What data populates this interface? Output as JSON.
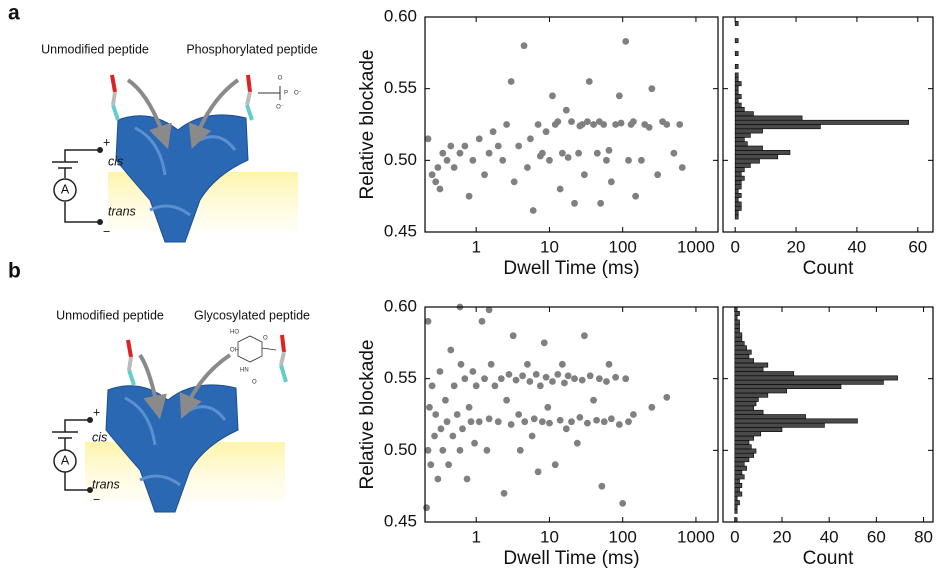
{
  "panels": [
    {
      "label": "a",
      "left_peptide": "Unmodified peptide",
      "right_peptide": "Phosphorylated peptide",
      "cis": "cis",
      "trans": "trans",
      "meter": "A",
      "plus": "+",
      "minus": "−",
      "chem": [
        "O",
        "P",
        "O⁻",
        "O⁻"
      ]
    },
    {
      "label": "b",
      "left_peptide": "Unmodified peptide",
      "right_peptide": "Glycosylated peptide",
      "cis": "cis",
      "trans": "trans",
      "meter": "A",
      "plus": "+",
      "minus": "−",
      "chem": [
        "HO",
        "OH",
        "HN",
        "O",
        "O"
      ]
    }
  ],
  "chart_data": [
    {
      "type": "scatter",
      "xlabel": "Dwell Time (ms)",
      "ylabel": "Relative blockade",
      "color": "#808080",
      "xscale": "log",
      "xlim": [
        0.2,
        2000
      ],
      "xticks": [
        1,
        10,
        100,
        1000
      ],
      "ylim": [
        0.45,
        0.6
      ],
      "yticks": [
        0.45,
        {
          "value": 0.5,
          "label": "0.50"
        },
        0.55,
        {
          "value": 0.6,
          "label": "0.60"
        }
      ],
      "x": [
        0.22,
        0.25,
        0.28,
        0.3,
        0.32,
        0.35,
        0.4,
        0.45,
        0.5,
        0.6,
        0.7,
        0.8,
        0.9,
        1.1,
        1.3,
        1.5,
        1.7,
        2,
        2.3,
        2.6,
        3,
        3.3,
        3.8,
        4.5,
        5,
        5.5,
        6,
        7,
        8,
        9,
        10,
        11,
        12,
        14,
        15,
        17,
        20,
        22,
        25,
        28,
        30,
        35,
        40,
        45,
        50,
        55,
        60,
        70,
        80,
        90,
        110,
        120,
        130,
        150,
        180,
        200,
        250,
        300,
        400,
        500,
        600,
        650,
        18,
        33,
        65,
        95,
        140,
        230,
        350,
        7.5,
        13,
        26,
        48
      ],
      "values": [
        0.515,
        0.49,
        0.485,
        0.495,
        0.48,
        0.505,
        0.5,
        0.51,
        0.495,
        0.505,
        0.51,
        0.475,
        0.5,
        0.515,
        0.49,
        0.505,
        0.52,
        0.51,
        0.5,
        0.525,
        0.555,
        0.485,
        0.51,
        0.58,
        0.495,
        0.515,
        0.465,
        0.525,
        0.505,
        0.52,
        0.5,
        0.545,
        0.525,
        0.48,
        0.505,
        0.535,
        0.527,
        0.47,
        0.505,
        0.525,
        0.49,
        0.555,
        0.525,
        0.505,
        0.47,
        0.525,
        0.5,
        0.485,
        0.525,
        0.545,
        0.583,
        0.5,
        0.525,
        0.475,
        0.5,
        0.525,
        0.55,
        0.49,
        0.525,
        0.505,
        0.525,
        0.495,
        0.502,
        0.527,
        0.507,
        0.526,
        0.527,
        0.523,
        0.527,
        0.503,
        0.527,
        0.524,
        0.527
      ]
    },
    {
      "type": "histogram",
      "orientation": "horizontal",
      "xlabel": "Count",
      "color": "#4a4a4a",
      "xlim": [
        -4,
        65
      ],
      "xticks": [
        0,
        20,
        40,
        60
      ],
      "ylim": [
        0.45,
        0.6
      ],
      "yticks": [
        0.45,
        0.5,
        0.55,
        0.6
      ],
      "bins": [
        0.45,
        0.453,
        0.456,
        0.459,
        0.462,
        0.465,
        0.468,
        0.471,
        0.474,
        0.477,
        0.48,
        0.483,
        0.486,
        0.489,
        0.492,
        0.495,
        0.498,
        0.501,
        0.504,
        0.507,
        0.51,
        0.513,
        0.516,
        0.519,
        0.522,
        0.525,
        0.528,
        0.531,
        0.534,
        0.537,
        0.54,
        0.543,
        0.546,
        0.549,
        0.552,
        0.555,
        0.558,
        0.561,
        0.564,
        0.567,
        0.57,
        0.573,
        0.576,
        0.579,
        0.582,
        0.585,
        0.588,
        0.591,
        0.594,
        0.597,
        0.6
      ],
      "values": [
        0,
        0,
        0,
        1,
        1,
        2,
        2,
        1,
        2,
        1,
        2,
        2,
        3,
        2,
        3,
        5,
        8,
        14,
        18,
        9,
        4,
        3,
        5,
        9,
        28,
        57,
        22,
        6,
        3,
        2,
        1,
        2,
        1,
        1,
        2,
        1,
        1,
        0,
        1,
        0,
        0,
        1,
        0,
        0,
        1,
        0,
        0,
        0,
        1,
        0
      ]
    },
    {
      "type": "scatter",
      "xlabel": "Dwell Time (ms)",
      "ylabel": "Relative blockade",
      "color": "#808080",
      "xscale": "log",
      "xlim": [
        0.2,
        2000
      ],
      "xticks": [
        1,
        10,
        100,
        1000
      ],
      "ylim": [
        0.45,
        0.6
      ],
      "yticks": [
        0.45,
        {
          "value": 0.5,
          "label": "0.50"
        },
        0.55,
        {
          "value": 0.6,
          "label": "0.60"
        }
      ],
      "x": [
        0.21,
        0.22,
        0.23,
        0.24,
        0.25,
        0.27,
        0.28,
        0.3,
        0.32,
        0.33,
        0.35,
        0.38,
        0.4,
        0.42,
        0.45,
        0.48,
        0.5,
        0.55,
        0.6,
        0.62,
        0.65,
        0.7,
        0.75,
        0.8,
        0.85,
        0.9,
        0.95,
        1,
        1.1,
        1.2,
        1.3,
        1.4,
        1.5,
        1.6,
        1.8,
        2,
        2.2,
        2.4,
        2.6,
        2.8,
        3,
        3.2,
        3.5,
        3.8,
        4,
        4.3,
        4.6,
        5,
        5.4,
        5.8,
        6.2,
        6.6,
        7,
        7.5,
        8,
        8.5,
        9,
        9.5,
        10,
        11,
        12,
        13,
        14,
        15,
        16,
        17,
        18,
        20,
        22,
        24,
        26,
        28,
        30,
        33,
        36,
        40,
        44,
        48,
        52,
        56,
        60,
        65,
        70,
        80,
        90,
        100,
        110,
        120,
        140,
        250,
        400,
        0.6,
        1.5,
        0.22
      ],
      "values": [
        0.46,
        0.5,
        0.53,
        0.49,
        0.545,
        0.51,
        0.525,
        0.48,
        0.555,
        0.515,
        0.5,
        0.535,
        0.52,
        0.49,
        0.57,
        0.51,
        0.545,
        0.525,
        0.5,
        0.56,
        0.515,
        0.55,
        0.48,
        0.53,
        0.52,
        0.555,
        0.505,
        0.545,
        0.52,
        0.59,
        0.55,
        0.5,
        0.522,
        0.56,
        0.545,
        0.52,
        0.55,
        0.47,
        0.535,
        0.553,
        0.518,
        0.58,
        0.549,
        0.525,
        0.5,
        0.552,
        0.52,
        0.56,
        0.548,
        0.51,
        0.522,
        0.553,
        0.485,
        0.545,
        0.52,
        0.575,
        0.551,
        0.53,
        0.519,
        0.548,
        0.49,
        0.553,
        0.521,
        0.56,
        0.547,
        0.515,
        0.552,
        0.52,
        0.55,
        0.505,
        0.523,
        0.549,
        0.58,
        0.519,
        0.552,
        0.535,
        0.521,
        0.55,
        0.475,
        0.52,
        0.548,
        0.56,
        0.522,
        0.551,
        0.518,
        0.463,
        0.55,
        0.52,
        0.525,
        0.53,
        0.537,
        0.6,
        0.598,
        0.59
      ]
    },
    {
      "type": "histogram",
      "orientation": "horizontal",
      "xlabel": "Count",
      "color": "#4a4a4a",
      "xlim": [
        -5,
        84
      ],
      "xticks": [
        0,
        20,
        40,
        60,
        80
      ],
      "ylim": [
        0.45,
        0.6
      ],
      "yticks": [
        0.45,
        0.5,
        0.55,
        0.6
      ],
      "bins": [
        0.45,
        0.453,
        0.456,
        0.459,
        0.462,
        0.465,
        0.468,
        0.471,
        0.474,
        0.477,
        0.48,
        0.483,
        0.486,
        0.489,
        0.492,
        0.495,
        0.498,
        0.501,
        0.504,
        0.507,
        0.51,
        0.513,
        0.516,
        0.519,
        0.522,
        0.525,
        0.528,
        0.531,
        0.534,
        0.537,
        0.54,
        0.543,
        0.546,
        0.549,
        0.552,
        0.555,
        0.558,
        0.561,
        0.564,
        0.567,
        0.57,
        0.573,
        0.576,
        0.579,
        0.582,
        0.585,
        0.588,
        0.591,
        0.594,
        0.597,
        0.6
      ],
      "values": [
        1,
        0,
        1,
        1,
        2,
        1,
        3,
        2,
        3,
        2,
        4,
        3,
        5,
        4,
        6,
        8,
        9,
        7,
        6,
        8,
        11,
        20,
        38,
        52,
        30,
        12,
        8,
        9,
        10,
        14,
        22,
        45,
        63,
        69,
        25,
        12,
        14,
        8,
        6,
        7,
        5,
        4,
        3,
        3,
        2,
        2,
        2,
        1,
        2,
        1
      ]
    }
  ]
}
